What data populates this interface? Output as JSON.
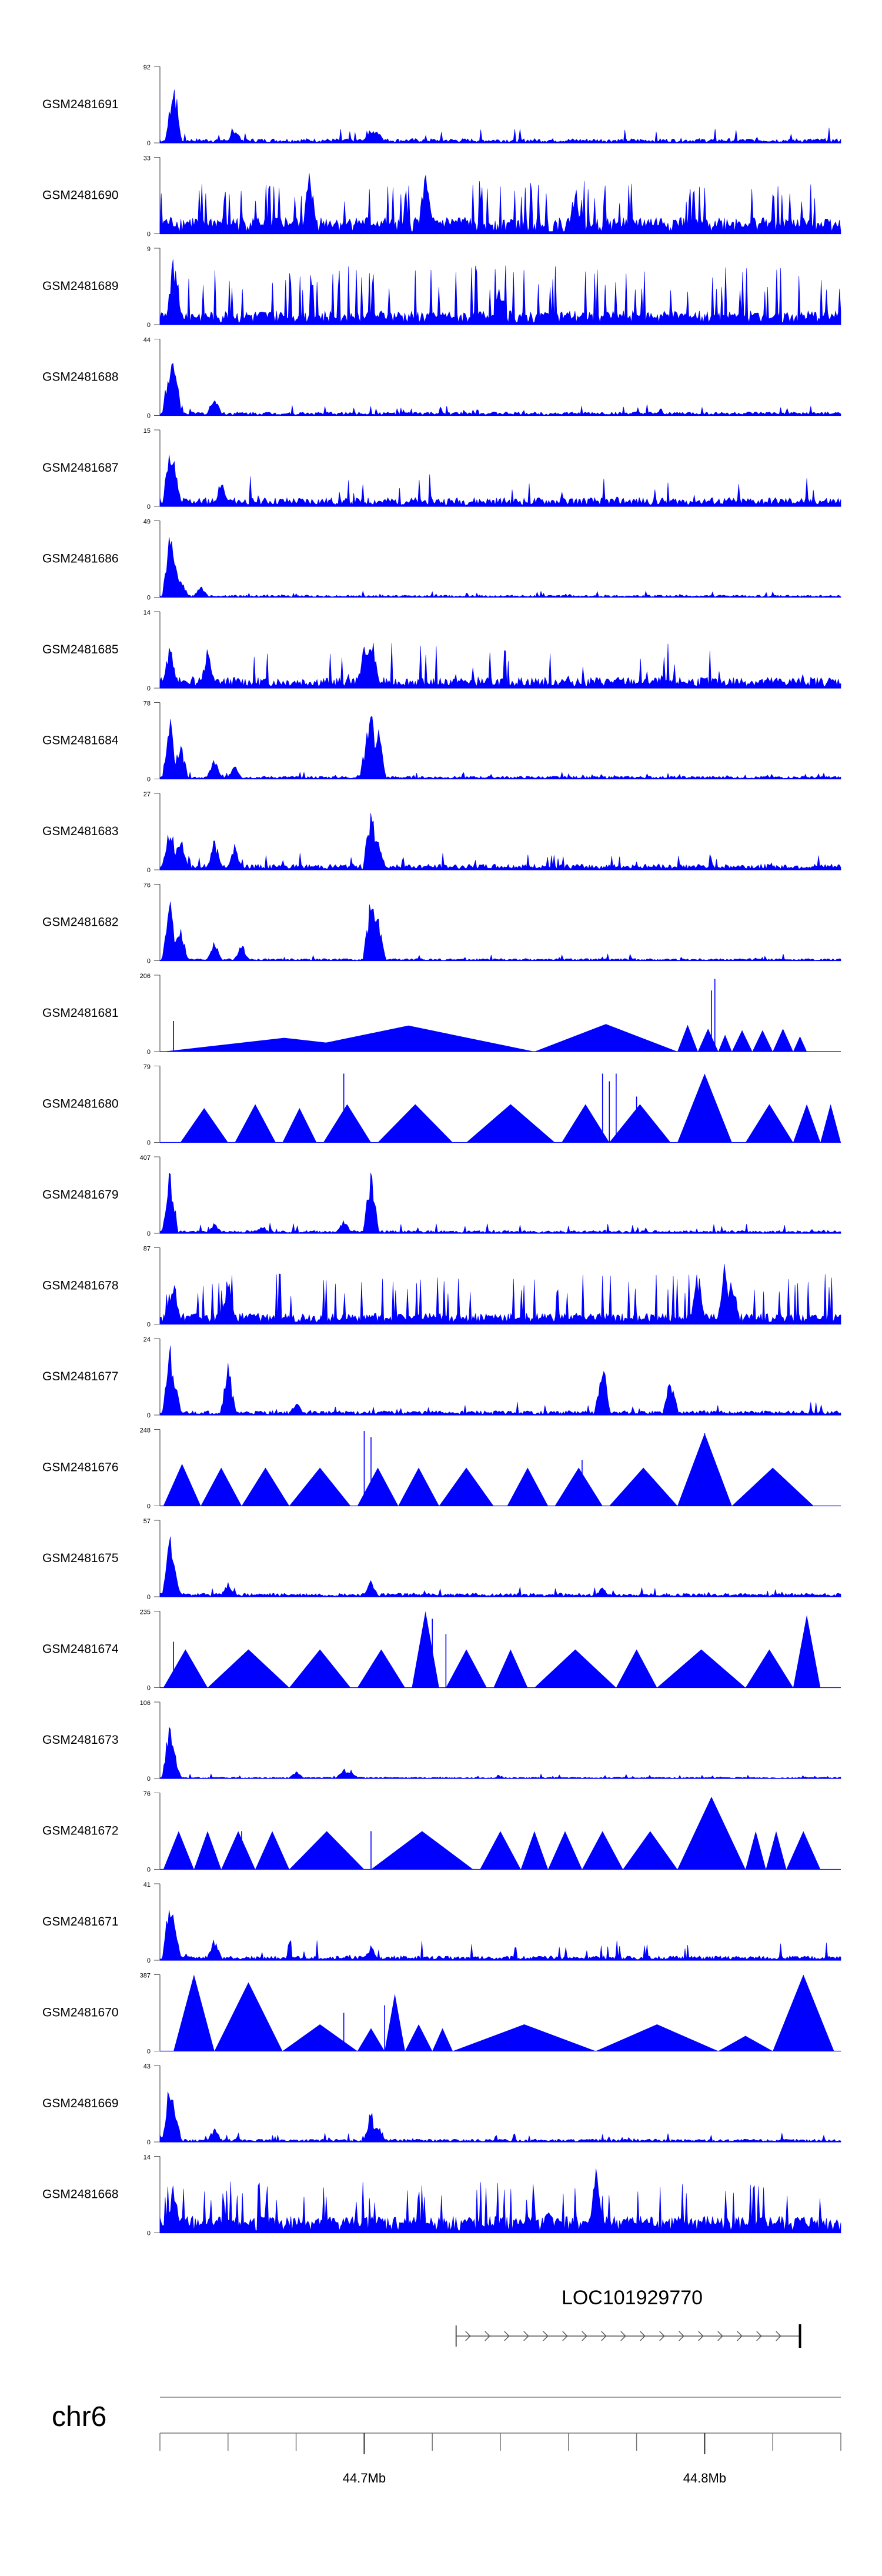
{
  "chart_data": {
    "type": "area",
    "color": "#0000ff",
    "axis_color": "#555555",
    "tracks": [
      {
        "name": "GSM2481691",
        "ymax": "92",
        "ymin": "0",
        "pattern": "dense",
        "base": 0.06,
        "noise": 0.14,
        "peaks": [
          [
            0.02,
            1.0
          ],
          [
            0.11,
            0.22
          ],
          [
            0.31,
            0.25
          ],
          [
            0.32,
            0.2
          ]
        ]
      },
      {
        "name": "GSM2481690",
        "ymax": "33",
        "ymin": "0",
        "pattern": "spiky",
        "base": 0.3,
        "noise": 0.6,
        "peaks": [
          [
            0.22,
            0.95
          ],
          [
            0.39,
            0.9
          ],
          [
            0.61,
            0.7
          ]
        ]
      },
      {
        "name": "GSM2481689",
        "ymax": "9",
        "ymin": "0",
        "pattern": "spiky",
        "base": 0.25,
        "noise": 0.7,
        "peaks": [
          [
            0.02,
            0.95
          ],
          [
            0.5,
            0.6
          ]
        ]
      },
      {
        "name": "GSM2481688",
        "ymax": "44",
        "ymin": "0",
        "pattern": "dense",
        "base": 0.05,
        "noise": 0.1,
        "peaks": [
          [
            0.015,
            0.85
          ],
          [
            0.02,
            0.98
          ],
          [
            0.08,
            0.3
          ]
        ]
      },
      {
        "name": "GSM2481687",
        "ymax": "15",
        "ymin": "0",
        "pattern": "dense",
        "base": 0.12,
        "noise": 0.3,
        "peaks": [
          [
            0.015,
            0.95
          ],
          [
            0.02,
            0.7
          ],
          [
            0.09,
            0.35
          ]
        ]
      },
      {
        "name": "GSM2481686",
        "ymax": "49",
        "ymin": "0",
        "pattern": "dense",
        "base": 0.03,
        "noise": 0.05,
        "peaks": [
          [
            0.015,
            0.95
          ],
          [
            0.02,
            0.6
          ],
          [
            0.03,
            0.35
          ],
          [
            0.06,
            0.18
          ]
        ]
      },
      {
        "name": "GSM2481685",
        "ymax": "14",
        "ymin": "0",
        "pattern": "dense",
        "base": 0.15,
        "noise": 0.45,
        "peaks": [
          [
            0.015,
            0.7
          ],
          [
            0.07,
            0.6
          ],
          [
            0.31,
            0.92
          ],
          [
            0.3,
            0.6
          ]
        ]
      },
      {
        "name": "GSM2481684",
        "ymax": "78",
        "ymin": "0",
        "pattern": "dense",
        "base": 0.04,
        "noise": 0.05,
        "peaks": [
          [
            0.015,
            0.9
          ],
          [
            0.03,
            0.55
          ],
          [
            0.08,
            0.3
          ],
          [
            0.11,
            0.2
          ],
          [
            0.31,
            0.98
          ],
          [
            0.32,
            0.8
          ],
          [
            0.305,
            0.7
          ]
        ]
      },
      {
        "name": "GSM2481683",
        "ymax": "27",
        "ymin": "0",
        "pattern": "dense",
        "base": 0.08,
        "noise": 0.15,
        "peaks": [
          [
            0.015,
            0.75
          ],
          [
            0.03,
            0.5
          ],
          [
            0.08,
            0.45
          ],
          [
            0.11,
            0.35
          ],
          [
            0.31,
            0.92
          ],
          [
            0.32,
            0.6
          ]
        ]
      },
      {
        "name": "GSM2481682",
        "ymax": "76",
        "ymin": "0",
        "pattern": "dense",
        "base": 0.03,
        "noise": 0.06,
        "peaks": [
          [
            0.015,
            0.85
          ],
          [
            0.03,
            0.5
          ],
          [
            0.08,
            0.3
          ],
          [
            0.12,
            0.25
          ],
          [
            0.31,
            0.95
          ],
          [
            0.32,
            0.7
          ]
        ]
      },
      {
        "name": "GSM2481681",
        "ymax": "206",
        "ymin": "0",
        "pattern": "peaks",
        "tri": [
          [
            0.005,
            0.36,
            0.18
          ],
          [
            0.18,
            0.55,
            0.34
          ],
          [
            0.55,
            0.76,
            0.36
          ],
          [
            0.76,
            0.79,
            0.35
          ],
          [
            0.79,
            0.82,
            0.3
          ],
          [
            0.82,
            0.84,
            0.22
          ],
          [
            0.84,
            0.87,
            0.28
          ],
          [
            0.87,
            0.9,
            0.28
          ],
          [
            0.9,
            0.93,
            0.3
          ],
          [
            0.93,
            0.95,
            0.2
          ]
        ],
        "spikes": [
          [
            0.02,
            0.4
          ],
          [
            0.81,
            0.8
          ],
          [
            0.815,
            0.95
          ]
        ]
      },
      {
        "name": "GSM2481680",
        "ymax": "79",
        "ymin": "0",
        "pattern": "peaks",
        "tri": [
          [
            0.03,
            0.1,
            0.45
          ],
          [
            0.11,
            0.17,
            0.5
          ],
          [
            0.18,
            0.23,
            0.45
          ],
          [
            0.24,
            0.31,
            0.5
          ],
          [
            0.32,
            0.43,
            0.5
          ],
          [
            0.45,
            0.58,
            0.5
          ],
          [
            0.59,
            0.66,
            0.5
          ],
          [
            0.66,
            0.75,
            0.5
          ],
          [
            0.76,
            0.84,
            0.9
          ],
          [
            0.86,
            0.93,
            0.5
          ],
          [
            0.93,
            0.97,
            0.5
          ],
          [
            0.97,
            1.0,
            0.5
          ]
        ],
        "spikes": [
          [
            0.27,
            0.9
          ],
          [
            0.65,
            0.9
          ],
          [
            0.66,
            0.8
          ],
          [
            0.67,
            0.9
          ],
          [
            0.7,
            0.6
          ]
        ]
      },
      {
        "name": "GSM2481679",
        "ymax": "407",
        "ymin": "0",
        "pattern": "dense",
        "base": 0.04,
        "noise": 0.1,
        "peaks": [
          [
            0.015,
            0.95
          ],
          [
            0.31,
            0.95
          ],
          [
            0.27,
            0.2
          ],
          [
            0.08,
            0.15
          ],
          [
            0.15,
            0.12
          ]
        ]
      },
      {
        "name": "GSM2481678",
        "ymax": "87",
        "ymin": "0",
        "pattern": "spiky",
        "base": 0.2,
        "noise": 0.6,
        "peaks": [
          [
            0.02,
            0.75
          ],
          [
            0.1,
            0.7
          ],
          [
            0.79,
            0.75
          ],
          [
            0.83,
            0.95
          ],
          [
            0.84,
            0.8
          ]
        ]
      },
      {
        "name": "GSM2481677",
        "ymax": "24",
        "ymin": "0",
        "pattern": "dense",
        "base": 0.06,
        "noise": 0.12,
        "peaks": [
          [
            0.015,
            0.95
          ],
          [
            0.02,
            0.6
          ],
          [
            0.1,
            0.75
          ],
          [
            0.65,
            0.85
          ],
          [
            0.75,
            0.6
          ],
          [
            0.2,
            0.2
          ]
        ]
      },
      {
        "name": "GSM2481676",
        "ymax": "248",
        "ymin": "0",
        "pattern": "peaks",
        "tri": [
          [
            0.005,
            0.06,
            0.55
          ],
          [
            0.06,
            0.12,
            0.5
          ],
          [
            0.12,
            0.19,
            0.5
          ],
          [
            0.19,
            0.28,
            0.5
          ],
          [
            0.29,
            0.35,
            0.5
          ],
          [
            0.35,
            0.41,
            0.5
          ],
          [
            0.41,
            0.49,
            0.5
          ],
          [
            0.51,
            0.57,
            0.5
          ],
          [
            0.58,
            0.65,
            0.5
          ],
          [
            0.66,
            0.76,
            0.5
          ],
          [
            0.76,
            0.84,
            0.95
          ],
          [
            0.84,
            0.96,
            0.5
          ]
        ],
        "spikes": [
          [
            0.3,
            0.98
          ],
          [
            0.31,
            0.9
          ],
          [
            0.62,
            0.6
          ],
          [
            0.8,
            0.95
          ]
        ]
      },
      {
        "name": "GSM2481675",
        "ymax": "57",
        "ymin": "0",
        "pattern": "dense",
        "base": 0.05,
        "noise": 0.1,
        "peaks": [
          [
            0.015,
            0.9
          ],
          [
            0.02,
            0.5
          ],
          [
            0.1,
            0.2
          ],
          [
            0.31,
            0.25
          ],
          [
            0.65,
            0.15
          ]
        ]
      },
      {
        "name": "GSM2481674",
        "ymax": "235",
        "ymin": "0",
        "pattern": "peaks",
        "tri": [
          [
            0.005,
            0.07,
            0.5
          ],
          [
            0.07,
            0.19,
            0.5
          ],
          [
            0.19,
            0.28,
            0.5
          ],
          [
            0.29,
            0.36,
            0.5
          ],
          [
            0.37,
            0.41,
            1.0
          ],
          [
            0.42,
            0.48,
            0.5
          ],
          [
            0.49,
            0.54,
            0.5
          ],
          [
            0.55,
            0.67,
            0.5
          ],
          [
            0.67,
            0.73,
            0.5
          ],
          [
            0.73,
            0.86,
            0.5
          ],
          [
            0.86,
            0.93,
            0.5
          ],
          [
            0.93,
            0.97,
            0.95
          ]
        ],
        "spikes": [
          [
            0.02,
            0.6
          ],
          [
            0.4,
            0.9
          ],
          [
            0.42,
            0.7
          ]
        ]
      },
      {
        "name": "GSM2481673",
        "ymax": "106",
        "ymin": "0",
        "pattern": "dense",
        "base": 0.02,
        "noise": 0.04,
        "peaks": [
          [
            0.015,
            0.95
          ],
          [
            0.02,
            0.4
          ],
          [
            0.2,
            0.1
          ],
          [
            0.27,
            0.15
          ],
          [
            0.28,
            0.12
          ]
        ]
      },
      {
        "name": "GSM2481672",
        "ymax": "76",
        "ymin": "0",
        "pattern": "peaks",
        "tri": [
          [
            0.005,
            0.05,
            0.5
          ],
          [
            0.05,
            0.09,
            0.5
          ],
          [
            0.09,
            0.14,
            0.5
          ],
          [
            0.14,
            0.19,
            0.5
          ],
          [
            0.19,
            0.3,
            0.5
          ],
          [
            0.31,
            0.46,
            0.5
          ],
          [
            0.47,
            0.53,
            0.5
          ],
          [
            0.53,
            0.57,
            0.5
          ],
          [
            0.57,
            0.62,
            0.5
          ],
          [
            0.62,
            0.68,
            0.5
          ],
          [
            0.68,
            0.76,
            0.5
          ],
          [
            0.76,
            0.86,
            0.95
          ],
          [
            0.86,
            0.89,
            0.5
          ],
          [
            0.89,
            0.92,
            0.5
          ],
          [
            0.92,
            0.97,
            0.5
          ]
        ],
        "spikes": [
          [
            0.12,
            0.5
          ],
          [
            0.31,
            0.5
          ]
        ]
      },
      {
        "name": "GSM2481671",
        "ymax": "41",
        "ymin": "0",
        "pattern": "dense",
        "base": 0.06,
        "noise": 0.2,
        "peaks": [
          [
            0.015,
            0.95
          ],
          [
            0.02,
            0.6
          ],
          [
            0.08,
            0.3
          ],
          [
            0.31,
            0.2
          ]
        ]
      },
      {
        "name": "GSM2481670",
        "ymax": "387",
        "ymin": "0",
        "pattern": "peaks",
        "tri": [
          [
            0.02,
            0.08,
            1.0
          ],
          [
            0.08,
            0.18,
            0.9
          ],
          [
            0.18,
            0.29,
            0.35
          ],
          [
            0.29,
            0.33,
            0.3
          ],
          [
            0.33,
            0.36,
            0.75
          ],
          [
            0.36,
            0.4,
            0.35
          ],
          [
            0.4,
            0.43,
            0.3
          ],
          [
            0.43,
            0.64,
            0.35
          ],
          [
            0.64,
            0.82,
            0.35
          ],
          [
            0.82,
            0.9,
            0.2
          ],
          [
            0.9,
            0.99,
            1.0
          ]
        ],
        "spikes": [
          [
            0.27,
            0.5
          ],
          [
            0.33,
            0.6
          ]
        ]
      },
      {
        "name": "GSM2481669",
        "ymax": "43",
        "ymin": "0",
        "pattern": "dense",
        "base": 0.04,
        "noise": 0.08,
        "peaks": [
          [
            0.015,
            0.95
          ],
          [
            0.02,
            0.6
          ],
          [
            0.08,
            0.2
          ],
          [
            0.31,
            0.45
          ],
          [
            0.32,
            0.3
          ]
        ]
      },
      {
        "name": "GSM2481668",
        "ymax": "14",
        "ymin": "0",
        "pattern": "spiky",
        "base": 0.3,
        "noise": 0.6,
        "peaks": [
          [
            0.02,
            0.7
          ],
          [
            0.64,
            0.95
          ],
          [
            0.57,
            0.35
          ]
        ]
      }
    ],
    "gene": {
      "name": "LOC101929770",
      "strand": "+",
      "start_frac": 0.435,
      "end_frac": 0.94
    },
    "axis": {
      "chromosome": "chr6",
      "labels": [
        {
          "text": "44.7Mb",
          "frac": 0.3
        },
        {
          "text": "44.8Mb",
          "frac": 0.8
        }
      ],
      "tick_fracs": [
        0.0,
        0.1,
        0.2,
        0.3,
        0.4,
        0.5,
        0.6,
        0.7,
        0.8,
        0.9,
        1.0
      ]
    }
  }
}
